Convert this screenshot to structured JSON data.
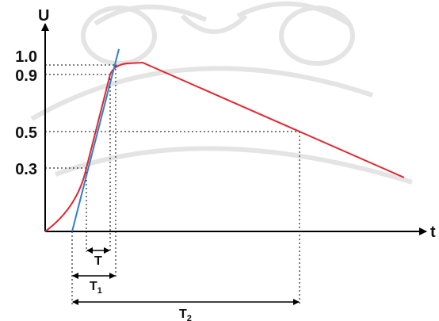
{
  "diagram": {
    "axis_labels": {
      "y": "U",
      "x": "t"
    },
    "y_ticks": [
      "1.0",
      "0.9",
      "0.5",
      "0.3"
    ],
    "intervals": [
      {
        "name": "T",
        "subscript": ""
      },
      {
        "name": "T",
        "subscript": "1"
      },
      {
        "name": "T",
        "subscript": "2"
      }
    ],
    "colors": {
      "curve": "#e3262e",
      "tangent": "#2f7fd0",
      "axes": "#000000",
      "guides": "#000000",
      "watermark": "#b4b4b4"
    }
  }
}
